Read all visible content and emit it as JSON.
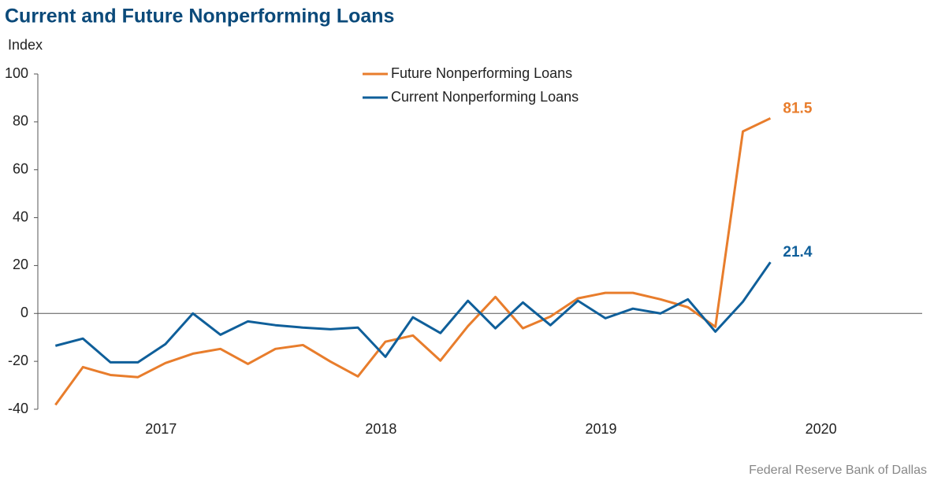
{
  "chart_data": {
    "type": "line",
    "title": "Current and Future Nonperforming Loans",
    "y_label": "Index",
    "source": "Federal Reserve Bank of Dallas",
    "x": [
      2017.02,
      2017.145,
      2017.27,
      2017.395,
      2017.52,
      2017.645,
      2017.77,
      2017.895,
      2018.02,
      2018.145,
      2018.27,
      2018.395,
      2018.52,
      2018.645,
      2018.77,
      2018.895,
      2019.02,
      2019.145,
      2019.27,
      2019.395,
      2019.52,
      2019.645,
      2019.77,
      2019.895,
      2020.02,
      2020.145,
      2020.27
    ],
    "series": [
      {
        "name": "Future Nonperforming Loans",
        "color": "#e87d2c",
        "values": [
          -38.2,
          -22.4,
          -25.7,
          -26.6,
          -20.7,
          -16.8,
          -14.8,
          -21.1,
          -14.8,
          -13.2,
          -20.1,
          -26.3,
          -11.8,
          -9.2,
          -19.7,
          -5.3,
          6.9,
          -6.2,
          -1.3,
          6.3,
          8.6,
          8.6,
          5.9,
          2.6,
          -5.6,
          76,
          81.5
        ]
      },
      {
        "name": "Current Nonperforming Loans",
        "color": "#0f5f9a",
        "values": [
          -13.5,
          -10.5,
          -20.4,
          -20.4,
          -12.8,
          0,
          -8.9,
          -3.3,
          -4.9,
          -5.9,
          -6.6,
          -5.9,
          -18.1,
          -1.6,
          -8.2,
          5.3,
          -6.2,
          4.6,
          -4.9,
          5.3,
          -2,
          2,
          0,
          5.9,
          -7.6,
          4.9,
          21.4
        ]
      }
    ],
    "xlim": [
      2016.94,
      2020.96
    ],
    "xticks": [
      {
        "value": 2017.5,
        "label": "2017"
      },
      {
        "value": 2018.5,
        "label": "2018"
      },
      {
        "value": 2019.5,
        "label": "2019"
      },
      {
        "value": 2020.5,
        "label": "2020"
      }
    ],
    "ylim": [
      -40,
      100
    ],
    "yticks": [
      -40,
      -20,
      0,
      20,
      40,
      60,
      80,
      100
    ],
    "legend": "top"
  }
}
